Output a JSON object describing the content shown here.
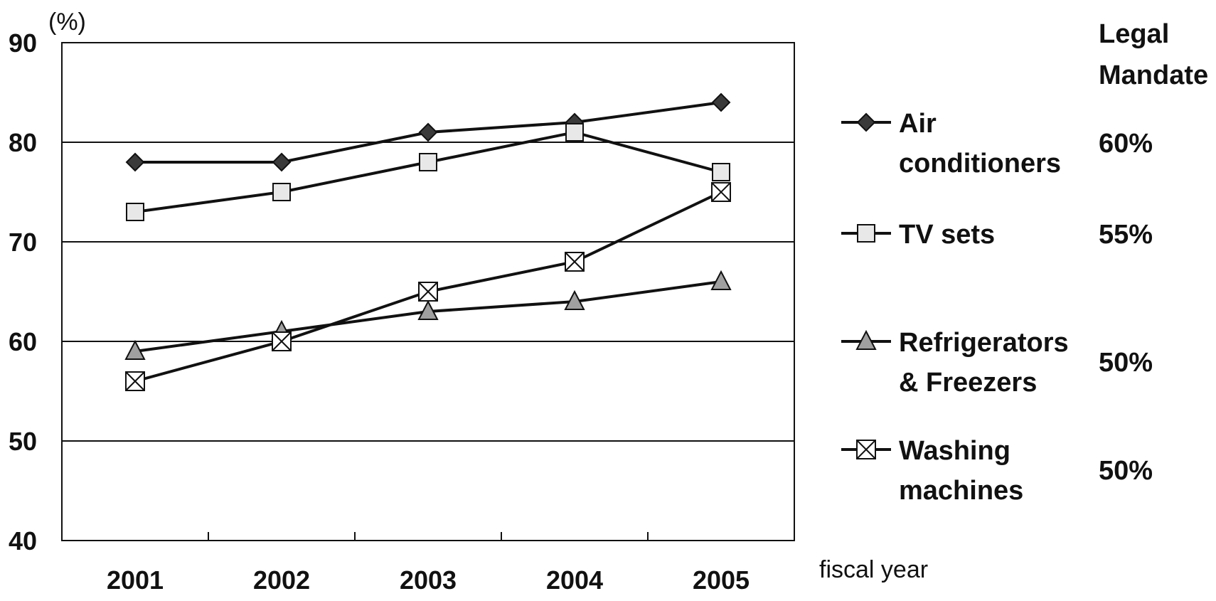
{
  "chart_data": {
    "type": "line",
    "title": "",
    "ylabel": "(%)",
    "xlabel": "fiscal year",
    "ylim": [
      40,
      90
    ],
    "yticks": [
      "40",
      "50",
      "60",
      "70",
      "80",
      "90"
    ],
    "categories": [
      "2001",
      "2002",
      "2003",
      "2004",
      "2005"
    ],
    "grid": true,
    "legend_position": "right",
    "legend_header": [
      "Legal",
      "Mandate"
    ],
    "series": [
      {
        "name_lines": [
          "Air",
          "conditioners"
        ],
        "marker": "diamond",
        "fill": "#3a3a3a",
        "values": [
          78,
          78,
          81,
          82,
          84
        ],
        "mandate": "60%"
      },
      {
        "name_lines": [
          "TV sets"
        ],
        "marker": "square",
        "fill": "#e8e8e8",
        "values": [
          73,
          75,
          78,
          81,
          77
        ],
        "mandate": "55%"
      },
      {
        "name_lines": [
          "Refrigerators",
          "& Freezers"
        ],
        "marker": "triangle",
        "fill": "#a0a0a0",
        "values": [
          59,
          61,
          63,
          64,
          66
        ],
        "mandate": "50%"
      },
      {
        "name_lines": [
          "Washing",
          "machines"
        ],
        "marker": "xsquare",
        "fill": "#ffffff",
        "values": [
          56,
          60,
          65,
          68,
          75
        ],
        "mandate": "50%"
      }
    ]
  }
}
